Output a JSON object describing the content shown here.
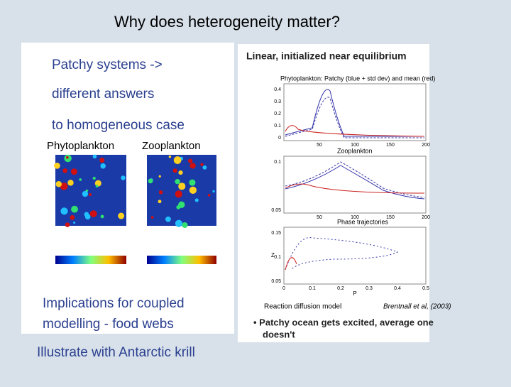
{
  "slide": {
    "title": "Why does heterogeneity matter?",
    "left": {
      "lines": [
        "Patchy systems ->",
        "different answers",
        "to homogeneous case"
      ],
      "map_labels": [
        "Phytoplankton",
        "Zooplankton"
      ],
      "implications": [
        "Implications for coupled",
        "modelling - food webs"
      ],
      "krill": "Illustrate with Antarctic krill"
    },
    "right": {
      "heading": "Linear, initialized near equilibrium",
      "plots": [
        {
          "title": "Phytoplankton: Patchy (blue + std dev) and mean (red)",
          "yticks": [
            "0.4",
            "0.3",
            "0.2",
            "0.1",
            "0"
          ],
          "xticks": [
            "50",
            "100",
            "150",
            "200"
          ]
        },
        {
          "title": "Zooplankton",
          "yticks": [
            "0.1",
            "0.05"
          ],
          "xticks": [
            "50",
            "100",
            "150",
            "200"
          ]
        },
        {
          "title": "Phase trajectories",
          "yticks": [
            "0.15",
            "0.1",
            "0.05"
          ],
          "xticks": [
            "0",
            "0.1",
            "0.2",
            "0.3",
            "0.4",
            "0.5"
          ],
          "xlabel": "P",
          "ylabel": "Z"
        }
      ],
      "caption_left": "Reaction diffusion model",
      "caption_right": "Brentnall et al, (2003)",
      "bullet": [
        "• Patchy ocean gets excited, average one",
        "doesn't"
      ]
    }
  }
}
